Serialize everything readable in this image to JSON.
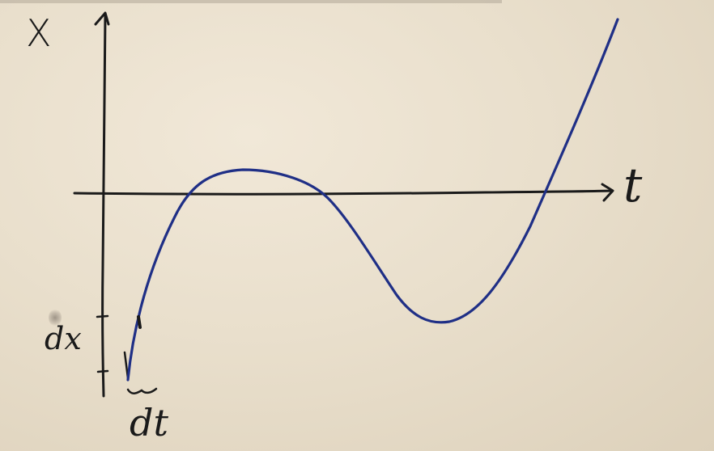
{
  "labels": {
    "vertical_axis": "X",
    "horizontal_axis": "t",
    "delta_x": "dx",
    "delta_t": "dt"
  },
  "colors": {
    "board": "#e9dfcc",
    "ink_black": "#1a1a1a",
    "ink_blue": "#1f2f86"
  }
}
